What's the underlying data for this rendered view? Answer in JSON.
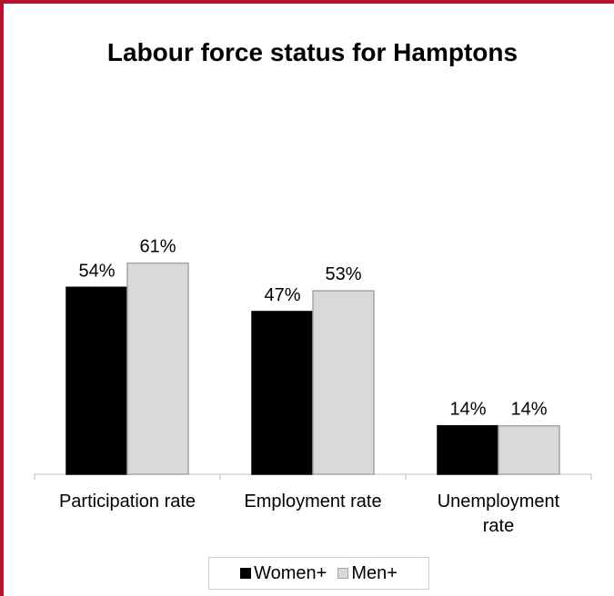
{
  "chart_data": {
    "type": "bar",
    "title": "Labour force status for Hamptons",
    "categories": [
      "Participation rate",
      "Employment rate",
      "Unemployment rate"
    ],
    "category_label_lines": [
      [
        "Participation rate"
      ],
      [
        "Employment rate"
      ],
      [
        "Unemployment",
        "rate"
      ]
    ],
    "series": [
      {
        "name": "Women+",
        "values": [
          54,
          47,
          14
        ],
        "labels": [
          "54%",
          "47%",
          "14%"
        ],
        "color": "#000000",
        "stroke": "#000000"
      },
      {
        "name": "Men+",
        "values": [
          61,
          53,
          14
        ],
        "labels": [
          "61%",
          "53%",
          "14%"
        ],
        "color": "#d9d9d9",
        "stroke": "#a6a6a6"
      }
    ],
    "ylim": [
      0,
      100
    ],
    "grid": false,
    "legend": "bottom",
    "xlabel": "",
    "ylabel": ""
  },
  "colors": {
    "frame": "#b5122e",
    "axis": "#bfbfbf"
  }
}
